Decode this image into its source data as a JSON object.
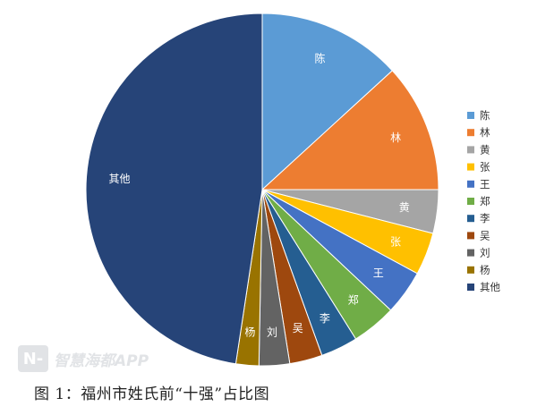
{
  "chart_data": {
    "type": "pie",
    "title": "",
    "categories": [
      "陈",
      "林",
      "黄",
      "张",
      "王",
      "郑",
      "李",
      "吴",
      "刘",
      "杨",
      "其他"
    ],
    "values": [
      13.2,
      11.8,
      4.0,
      3.9,
      4.1,
      4.1,
      3.4,
      3.0,
      2.8,
      2.1,
      47.6
    ],
    "colors": [
      "#5b9bd5",
      "#ed7d31",
      "#a5a5a5",
      "#ffc000",
      "#4472c4",
      "#70ad47",
      "#255e91",
      "#9e480e",
      "#636363",
      "#997300",
      "#264478"
    ],
    "legend_position": "right"
  },
  "caption": "图 1：福州市姓氏前“十强”占比图",
  "watermark": {
    "logo_text": "N-",
    "text": "智慧海都APP"
  }
}
